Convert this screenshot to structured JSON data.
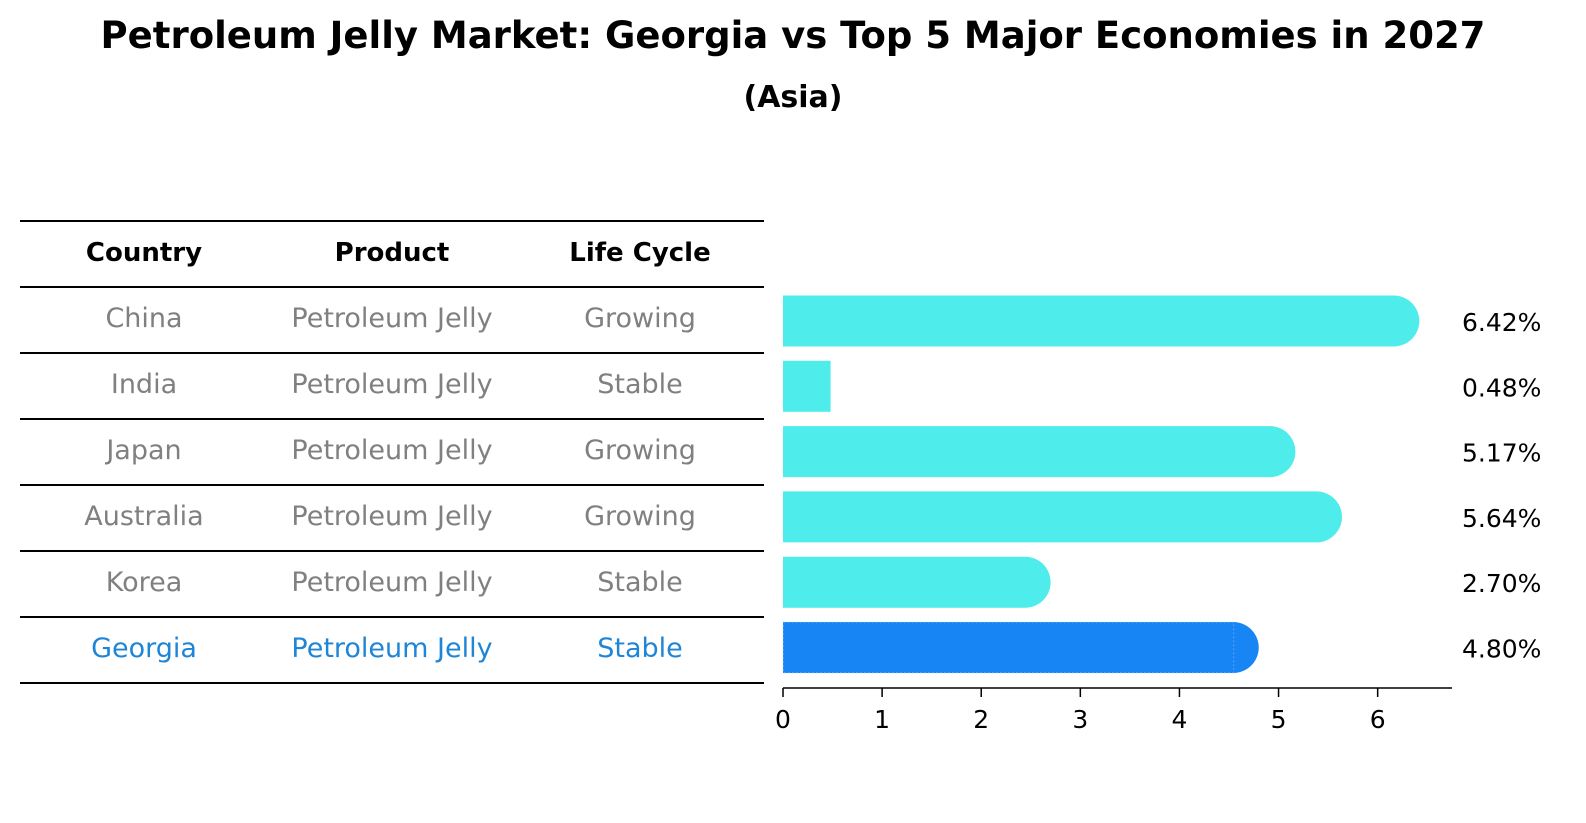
{
  "chart_data": {
    "type": "bar",
    "orientation": "horizontal",
    "title": "Petroleum Jelly Market: Georgia vs Top 5 Major Economies in 2027",
    "subtitle": "(Asia)",
    "table": {
      "columns": [
        "Country",
        "Product",
        "Life Cycle"
      ],
      "rows": [
        {
          "country": "China",
          "product": "Petroleum Jelly",
          "life_cycle": "Growing"
        },
        {
          "country": "India",
          "product": "Petroleum Jelly",
          "life_cycle": "Stable"
        },
        {
          "country": "Japan",
          "product": "Petroleum Jelly",
          "life_cycle": "Growing"
        },
        {
          "country": "Australia",
          "product": "Petroleum Jelly",
          "life_cycle": "Growing"
        },
        {
          "country": "Korea",
          "product": "Petroleum Jelly",
          "life_cycle": "Stable"
        },
        {
          "country": "Georgia",
          "product": "Petroleum Jelly",
          "life_cycle": "Stable"
        }
      ]
    },
    "categories": [
      "China",
      "India",
      "Japan",
      "Australia",
      "Korea",
      "Georgia"
    ],
    "values": [
      6.42,
      0.48,
      5.17,
      5.64,
      2.7,
      4.8
    ],
    "value_labels": [
      "6.42%",
      "0.48%",
      "5.17%",
      "5.64%",
      "2.70%",
      "4.80%"
    ],
    "highlight": "Georgia",
    "xlim": [
      0,
      6.75
    ],
    "xticks": [
      0,
      1,
      2,
      3,
      4,
      5,
      6
    ],
    "xlabel": "",
    "ylabel": "",
    "grid": false,
    "colors": {
      "bar": "#4eecea",
      "highlight_bar": "#1785f4",
      "table_text": "#808080",
      "highlight_text": "#1f85d6"
    }
  }
}
